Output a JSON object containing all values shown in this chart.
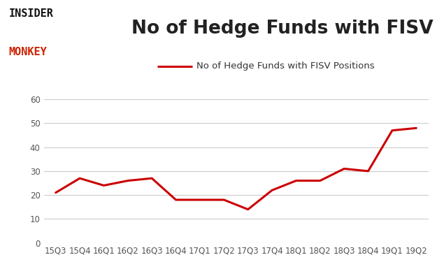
{
  "title": "No of Hedge Funds with FISV Positions",
  "legend_label": "No of Hedge Funds with FISV Positions",
  "x_labels": [
    "15Q3",
    "15Q4",
    "16Q1",
    "16Q2",
    "16Q3",
    "16Q4",
    "17Q1",
    "17Q2",
    "17Q3",
    "17Q4",
    "18Q1",
    "18Q2",
    "18Q3",
    "18Q4",
    "19Q1",
    "19Q2"
  ],
  "y_values": [
    21,
    27,
    24,
    26,
    27,
    18,
    18,
    18,
    14,
    22,
    26,
    26,
    31,
    30,
    47,
    48
  ],
  "line_color": "#cc0000",
  "line_width": 2.2,
  "ylim": [
    0,
    60
  ],
  "yticks": [
    0,
    10,
    20,
    30,
    40,
    50,
    60
  ],
  "title_fontsize": 19,
  "legend_fontsize": 9.5,
  "tick_fontsize": 8.5,
  "background_color": "#ffffff",
  "grid_color": "#cccccc",
  "title_color": "#222222",
  "logo_insider_color": "#111111",
  "logo_monkey_color": "#cc2200",
  "logo_insider": "INSIDER",
  "logo_monkey": "MONKEY"
}
